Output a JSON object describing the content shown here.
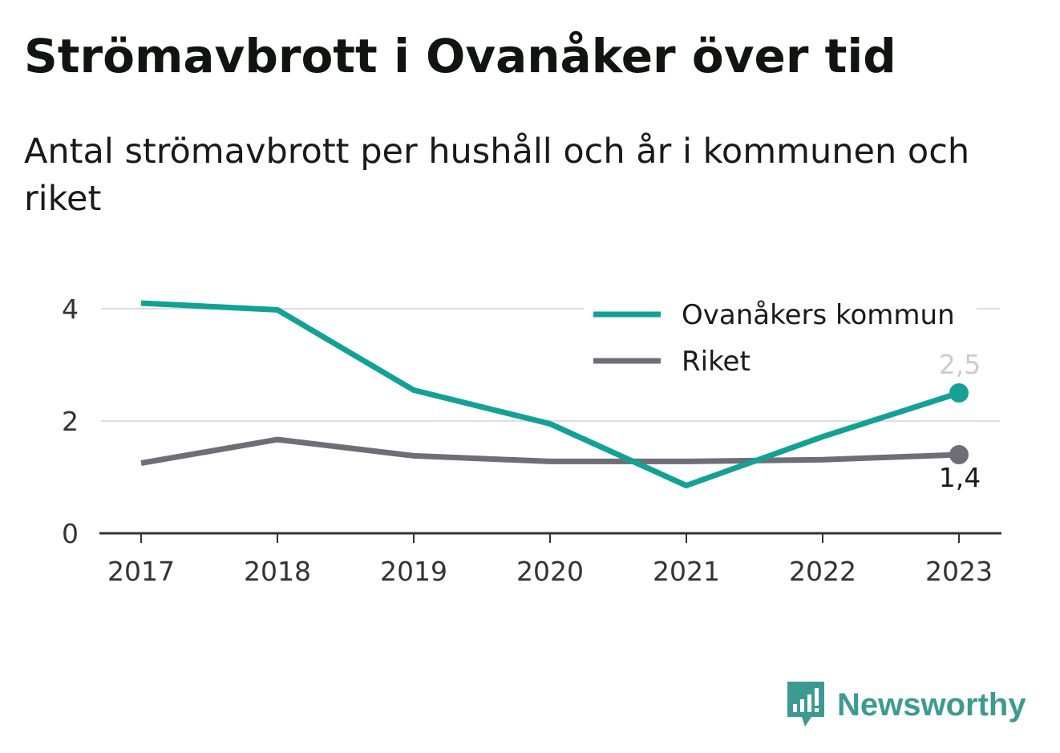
{
  "title": "Strömavbrott i Ovanåker över tid",
  "subtitle": "Antal strömavbrott per hushåll och år i kommunen och riket",
  "brand": {
    "name": "Newsworthy",
    "color": "#3d9a93"
  },
  "chart_data": {
    "type": "line",
    "x": [
      "2017",
      "2018",
      "2019",
      "2020",
      "2021",
      "2022",
      "2023"
    ],
    "series": [
      {
        "name": "Ovanåkers kommun",
        "color": "#13a196",
        "values": [
          4.1,
          3.98,
          2.55,
          1.95,
          0.85,
          1.72,
          2.5
        ],
        "end_label": "2,5"
      },
      {
        "name": "Riket",
        "color": "#6f6e76",
        "values": [
          1.25,
          1.67,
          1.38,
          1.28,
          1.28,
          1.31,
          1.4
        ],
        "end_label": "1,4"
      }
    ],
    "ylim": [
      0,
      4
    ],
    "yticks": [
      {
        "value": 0,
        "label": "0"
      },
      {
        "value": 2,
        "label": "2"
      },
      {
        "value": 4,
        "label": "4"
      }
    ],
    "grid": true,
    "legend": "top-right",
    "xlabel": "",
    "ylabel": ""
  }
}
